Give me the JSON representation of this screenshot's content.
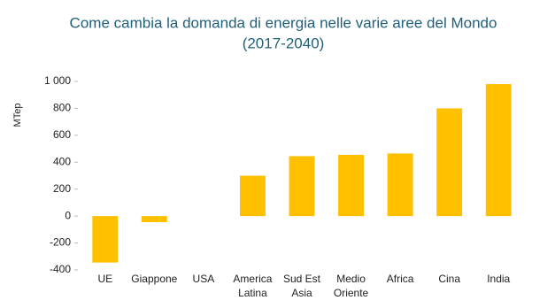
{
  "chart_data": {
    "type": "bar",
    "title": "Come cambia la domanda di energia nelle varie aree del Mondo",
    "subtitle": "(2017-2040)",
    "y_label": "MTep",
    "categories": [
      "UE",
      "Giappone",
      "USA",
      "America\nLatina",
      "Sud Est\nAsia",
      "Medio\nOriente",
      "Africa",
      "Cina",
      "India"
    ],
    "values": [
      -345,
      -45,
      0,
      300,
      445,
      455,
      465,
      800,
      980
    ],
    "color": "#ffc000",
    "ylim": [
      -400,
      1000
    ],
    "yticks": [
      -400,
      -200,
      0,
      200,
      400,
      600,
      800,
      {
        "value": 1000,
        "label": "1 000"
      }
    ],
    "grid": false
  }
}
